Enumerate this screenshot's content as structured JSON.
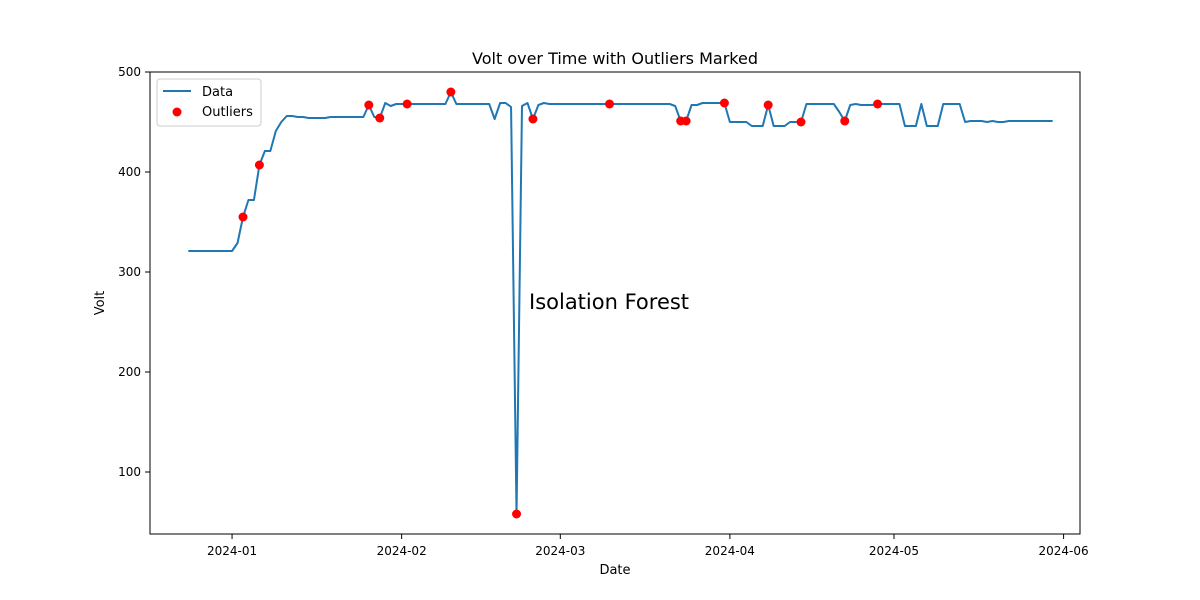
{
  "chart_data": {
    "type": "line",
    "title": "Volt over Time with Outliers Marked",
    "xlabel": "Date",
    "ylabel": "Volt",
    "annotation": "Isolation Forest",
    "xlim": [
      "2023-12-17",
      "2024-06-04"
    ],
    "ylim": [
      38,
      500
    ],
    "x_ticks": [
      "2024-01",
      "2024-02",
      "2024-03",
      "2024-04",
      "2024-05",
      "2024-06"
    ],
    "y_ticks": [
      100,
      200,
      300,
      400,
      500
    ],
    "grid": false,
    "legend": {
      "position": "top-left",
      "entries": [
        "Data",
        "Outliers"
      ]
    },
    "series": [
      {
        "name": "Data",
        "color": "#1f77b4",
        "points": [
          [
            "2023-12-24",
            321
          ],
          [
            "2023-12-25",
            321
          ],
          [
            "2023-12-26",
            321
          ],
          [
            "2023-12-27",
            321
          ],
          [
            "2023-12-28",
            321
          ],
          [
            "2023-12-29",
            321
          ],
          [
            "2023-12-30",
            321
          ],
          [
            "2023-12-31",
            321
          ],
          [
            "2024-01-01",
            321
          ],
          [
            "2024-01-02",
            329
          ],
          [
            "2024-01-03",
            355
          ],
          [
            "2024-01-04",
            372
          ],
          [
            "2024-01-05",
            372
          ],
          [
            "2024-01-06",
            407
          ],
          [
            "2024-01-07",
            421
          ],
          [
            "2024-01-08",
            421
          ],
          [
            "2024-01-09",
            441
          ],
          [
            "2024-01-10",
            450
          ],
          [
            "2024-01-11",
            456
          ],
          [
            "2024-01-12",
            456
          ],
          [
            "2024-01-13",
            455
          ],
          [
            "2024-01-14",
            455
          ],
          [
            "2024-01-15",
            454
          ],
          [
            "2024-01-16",
            454
          ],
          [
            "2024-01-17",
            454
          ],
          [
            "2024-01-18",
            454
          ],
          [
            "2024-01-19",
            455
          ],
          [
            "2024-01-20",
            455
          ],
          [
            "2024-01-21",
            455
          ],
          [
            "2024-01-22",
            455
          ],
          [
            "2024-01-23",
            455
          ],
          [
            "2024-01-24",
            455
          ],
          [
            "2024-01-25",
            455
          ],
          [
            "2024-01-26",
            467
          ],
          [
            "2024-01-27",
            455
          ],
          [
            "2024-01-28",
            454
          ],
          [
            "2024-01-29",
            469
          ],
          [
            "2024-01-30",
            466
          ],
          [
            "2024-01-31",
            468
          ],
          [
            "2024-02-01",
            468
          ],
          [
            "2024-02-02",
            468
          ],
          [
            "2024-02-03",
            468
          ],
          [
            "2024-02-04",
            468
          ],
          [
            "2024-02-05",
            468
          ],
          [
            "2024-02-06",
            468
          ],
          [
            "2024-02-07",
            468
          ],
          [
            "2024-02-08",
            468
          ],
          [
            "2024-02-09",
            468
          ],
          [
            "2024-02-10",
            480
          ],
          [
            "2024-02-11",
            468
          ],
          [
            "2024-02-12",
            468
          ],
          [
            "2024-02-13",
            468
          ],
          [
            "2024-02-14",
            468
          ],
          [
            "2024-02-15",
            468
          ],
          [
            "2024-02-16",
            468
          ],
          [
            "2024-02-17",
            468
          ],
          [
            "2024-02-18",
            453
          ],
          [
            "2024-02-19",
            469
          ],
          [
            "2024-02-20",
            469
          ],
          [
            "2024-02-21",
            465
          ],
          [
            "2024-02-22",
            58
          ],
          [
            "2024-02-23",
            466
          ],
          [
            "2024-02-24",
            469
          ],
          [
            "2024-02-25",
            453
          ],
          [
            "2024-02-26",
            467
          ],
          [
            "2024-02-27",
            469
          ],
          [
            "2024-02-28",
            468
          ],
          [
            "2024-02-29",
            468
          ],
          [
            "2024-03-01",
            468
          ],
          [
            "2024-03-02",
            468
          ],
          [
            "2024-03-03",
            468
          ],
          [
            "2024-03-04",
            468
          ],
          [
            "2024-03-05",
            468
          ],
          [
            "2024-03-06",
            468
          ],
          [
            "2024-03-07",
            468
          ],
          [
            "2024-03-08",
            468
          ],
          [
            "2024-03-09",
            468
          ],
          [
            "2024-03-10",
            468
          ],
          [
            "2024-03-11",
            468
          ],
          [
            "2024-03-12",
            468
          ],
          [
            "2024-03-13",
            468
          ],
          [
            "2024-03-14",
            468
          ],
          [
            "2024-03-15",
            468
          ],
          [
            "2024-03-16",
            468
          ],
          [
            "2024-03-17",
            468
          ],
          [
            "2024-03-18",
            468
          ],
          [
            "2024-03-19",
            468
          ],
          [
            "2024-03-20",
            468
          ],
          [
            "2024-03-21",
            468
          ],
          [
            "2024-03-22",
            466
          ],
          [
            "2024-03-23",
            451
          ],
          [
            "2024-03-24",
            451
          ],
          [
            "2024-03-25",
            467
          ],
          [
            "2024-03-26",
            467
          ],
          [
            "2024-03-27",
            469
          ],
          [
            "2024-03-28",
            469
          ],
          [
            "2024-03-29",
            469
          ],
          [
            "2024-03-30",
            469
          ],
          [
            "2024-03-31",
            469
          ],
          [
            "2024-04-01",
            450
          ],
          [
            "2024-04-02",
            450
          ],
          [
            "2024-04-03",
            450
          ],
          [
            "2024-04-04",
            450
          ],
          [
            "2024-04-05",
            446
          ],
          [
            "2024-04-06",
            446
          ],
          [
            "2024-04-07",
            446
          ],
          [
            "2024-04-08",
            467
          ],
          [
            "2024-04-09",
            446
          ],
          [
            "2024-04-10",
            446
          ],
          [
            "2024-04-11",
            446
          ],
          [
            "2024-04-12",
            450
          ],
          [
            "2024-04-13",
            450
          ],
          [
            "2024-04-14",
            450
          ],
          [
            "2024-04-15",
            468
          ],
          [
            "2024-04-16",
            468
          ],
          [
            "2024-04-17",
            468
          ],
          [
            "2024-04-18",
            468
          ],
          [
            "2024-04-19",
            468
          ],
          [
            "2024-04-20",
            468
          ],
          [
            "2024-04-21",
            460
          ],
          [
            "2024-04-22",
            451
          ],
          [
            "2024-04-23",
            467
          ],
          [
            "2024-04-24",
            468
          ],
          [
            "2024-04-25",
            467
          ],
          [
            "2024-04-26",
            467
          ],
          [
            "2024-04-27",
            467
          ],
          [
            "2024-04-28",
            468
          ],
          [
            "2024-04-29",
            468
          ],
          [
            "2024-04-30",
            468
          ],
          [
            "2024-05-01",
            468
          ],
          [
            "2024-05-02",
            468
          ],
          [
            "2024-05-03",
            446
          ],
          [
            "2024-05-04",
            446
          ],
          [
            "2024-05-05",
            446
          ],
          [
            "2024-05-06",
            468
          ],
          [
            "2024-05-07",
            446
          ],
          [
            "2024-05-08",
            446
          ],
          [
            "2024-05-09",
            446
          ],
          [
            "2024-05-10",
            468
          ],
          [
            "2024-05-11",
            468
          ],
          [
            "2024-05-12",
            468
          ],
          [
            "2024-05-13",
            468
          ],
          [
            "2024-05-14",
            450
          ],
          [
            "2024-05-15",
            451
          ],
          [
            "2024-05-16",
            451
          ],
          [
            "2024-05-17",
            451
          ],
          [
            "2024-05-18",
            450
          ],
          [
            "2024-05-19",
            451
          ],
          [
            "2024-05-20",
            450
          ],
          [
            "2024-05-21",
            450
          ],
          [
            "2024-05-22",
            451
          ],
          [
            "2024-05-23",
            451
          ],
          [
            "2024-05-24",
            451
          ],
          [
            "2024-05-25",
            451
          ],
          [
            "2024-05-26",
            451
          ],
          [
            "2024-05-27",
            451
          ],
          [
            "2024-05-28",
            451
          ],
          [
            "2024-05-29",
            451
          ],
          [
            "2024-05-30",
            451
          ]
        ]
      },
      {
        "name": "Outliers",
        "color": "#ff0000",
        "type": "scatter",
        "points": [
          [
            "2024-01-03",
            355
          ],
          [
            "2024-01-06",
            407
          ],
          [
            "2024-01-26",
            467
          ],
          [
            "2024-01-28",
            454
          ],
          [
            "2024-02-02",
            468
          ],
          [
            "2024-02-10",
            480
          ],
          [
            "2024-02-22",
            58
          ],
          [
            "2024-02-25",
            453
          ],
          [
            "2024-03-10",
            468
          ],
          [
            "2024-03-23",
            451
          ],
          [
            "2024-03-24",
            451
          ],
          [
            "2024-03-31",
            469
          ],
          [
            "2024-04-08",
            467
          ],
          [
            "2024-04-14",
            450
          ],
          [
            "2024-04-22",
            451
          ],
          [
            "2024-04-28",
            468
          ]
        ]
      }
    ]
  }
}
